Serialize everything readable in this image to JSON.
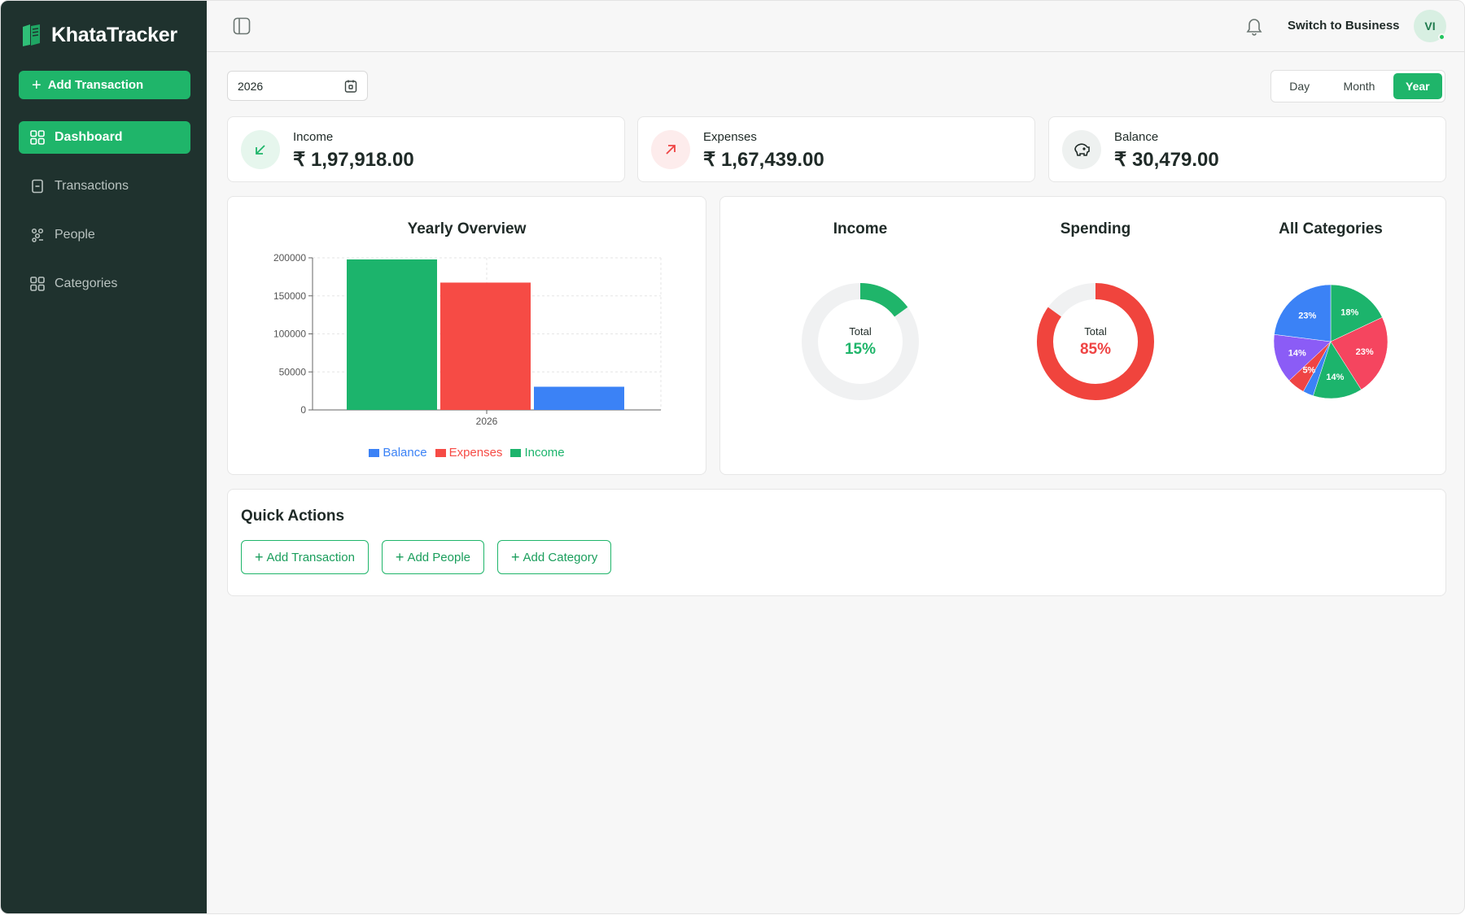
{
  "app": {
    "name": "KhataTracker"
  },
  "sidebar": {
    "add_button": "Add Transaction",
    "items": [
      {
        "label": "Dashboard",
        "icon": "grid-icon",
        "active": true
      },
      {
        "label": "Transactions",
        "icon": "receipt-icon",
        "active": false
      },
      {
        "label": "People",
        "icon": "people-icon",
        "active": false
      },
      {
        "label": "Categories",
        "icon": "grid-icon",
        "active": false
      }
    ]
  },
  "topbar": {
    "switch_label": "Switch to Business",
    "avatar_initials": "VI"
  },
  "controls": {
    "date_value": "2026",
    "periods": [
      {
        "label": "Day",
        "active": false
      },
      {
        "label": "Month",
        "active": false
      },
      {
        "label": "Year",
        "active": true
      }
    ]
  },
  "stats": [
    {
      "label": "Income",
      "value": "₹ 1,97,918.00",
      "icon": "arrow-down-left-icon",
      "color": "#1fb56a"
    },
    {
      "label": "Expenses",
      "value": "₹ 1,67,439.00",
      "icon": "arrow-up-right-icon",
      "color": "#ef4444"
    },
    {
      "label": "Balance",
      "value": "₹ 30,479.00",
      "icon": "piggy-bank-icon",
      "color": "#1f2a27"
    }
  ],
  "colors": {
    "income": "#1cb46c",
    "expenses": "#f64b45",
    "balance": "#3b82f6",
    "accent": "#1fb56a",
    "sidebar": "#1f322e"
  },
  "chart_data": [
    {
      "type": "bar",
      "title": "Yearly Overview",
      "categories": [
        "2026"
      ],
      "series": [
        {
          "name": "Income",
          "values": [
            197918
          ]
        },
        {
          "name": "Expenses",
          "values": [
            167439
          ]
        },
        {
          "name": "Balance",
          "values": [
            30479
          ]
        }
      ],
      "yticks": [
        0,
        50000,
        100000,
        150000,
        200000
      ],
      "ylim": [
        0,
        200000
      ],
      "legend": [
        "Balance",
        "Expenses",
        "Income"
      ],
      "grid": true
    },
    {
      "type": "pie",
      "title": "Income",
      "center_label": "Total",
      "center_value": "15%",
      "values": [
        15,
        85
      ]
    },
    {
      "type": "pie",
      "title": "Spending",
      "center_label": "Total",
      "center_value": "85%",
      "values": [
        85,
        15
      ]
    },
    {
      "type": "pie",
      "title": "All Categories",
      "slices": [
        {
          "value": 18,
          "label": "18%",
          "color": "#1cb46c"
        },
        {
          "value": 23,
          "label": "23%",
          "color": "#f5455f"
        },
        {
          "value": 14,
          "label": "14%",
          "color": "#1cb46c"
        },
        {
          "value": 3,
          "label": "",
          "color": "#3b82f6"
        },
        {
          "value": 5,
          "label": "5%",
          "color": "#ef4444"
        },
        {
          "value": 14,
          "label": "14%",
          "color": "#8b5cf6"
        },
        {
          "value": 23,
          "label": "23%",
          "color": "#3b82f6"
        }
      ]
    }
  ],
  "quick_actions": {
    "title": "Quick Actions",
    "buttons": [
      "Add Transaction",
      "Add People",
      "Add Category"
    ]
  }
}
